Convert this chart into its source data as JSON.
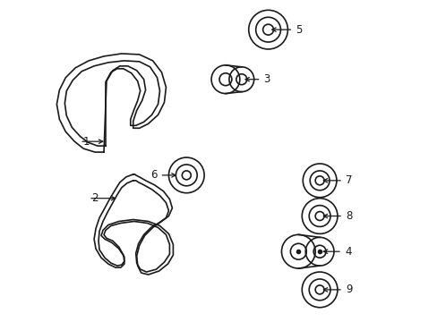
{
  "bg_color": "#ffffff",
  "line_color": "#1a1a1a",
  "line_width": 1.2,
  "label_fontsize": 8.5,
  "fig_w": 4.89,
  "fig_h": 3.6,
  "dpi": 100
}
